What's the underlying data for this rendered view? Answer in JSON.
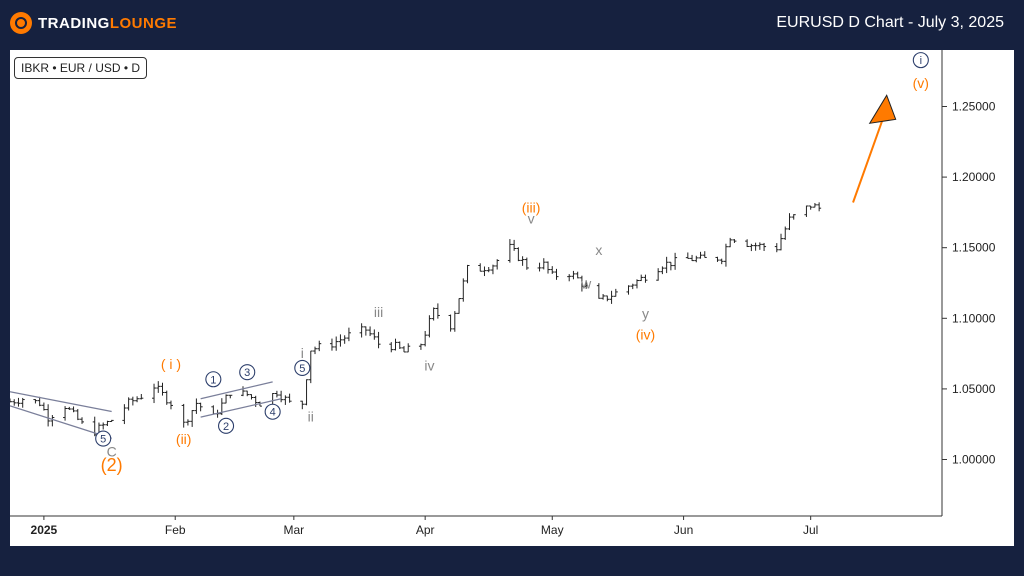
{
  "header": {
    "logo_text_main": "TRADING",
    "logo_text_accent": "LOUNGE",
    "title": "EURUSD D Chart - July 3, 2025"
  },
  "symbol": "IBKR • EUR / USD • D",
  "colors": {
    "background": "#16213f",
    "accent": "#ff7a00",
    "wave_gray": "#888888",
    "wave_blue": "#2c3e6b",
    "price_bar": "#222222"
  },
  "chart_data": {
    "type": "ohlc",
    "title": "EURUSD D Chart - July 3, 2025",
    "xlabel": "",
    "ylabel": "",
    "ylim": [
      0.96,
      1.29
    ],
    "y_ticks": [
      "1.00000",
      "1.05000",
      "1.10000",
      "1.15000",
      "1.20000",
      "1.25000"
    ],
    "x_ticks": [
      "2025",
      "Feb",
      "Mar",
      "Apr",
      "May",
      "Jun",
      "Jul"
    ],
    "x_range": [
      "2024-12-24",
      "2025-08-01"
    ],
    "grid": false,
    "series": [
      {
        "price_path": [
          [
            "2024-12-24",
            1.041
          ],
          [
            "2024-12-27",
            1.043
          ],
          [
            "2024-12-31",
            1.04
          ],
          [
            "2025-01-02",
            1.03
          ],
          [
            "2025-01-06",
            1.038
          ],
          [
            "2025-01-10",
            1.025
          ],
          [
            "2025-01-13",
            1.02
          ],
          [
            "2025-01-17",
            1.028
          ],
          [
            "2025-01-21",
            1.04
          ],
          [
            "2025-01-24",
            1.045
          ],
          [
            "2025-01-27",
            1.052
          ],
          [
            "2025-01-31",
            1.04
          ],
          [
            "2025-02-03",
            1.025
          ],
          [
            "2025-02-06",
            1.04
          ],
          [
            "2025-02-10",
            1.03
          ],
          [
            "2025-02-14",
            1.048
          ],
          [
            "2025-02-18",
            1.046
          ],
          [
            "2025-02-21",
            1.04
          ],
          [
            "2025-02-25",
            1.048
          ],
          [
            "2025-02-28",
            1.04
          ],
          [
            "2025-03-03",
            1.04
          ],
          [
            "2025-03-05",
            1.078
          ],
          [
            "2025-03-10",
            1.082
          ],
          [
            "2025-03-14",
            1.088
          ],
          [
            "2025-03-18",
            1.092
          ],
          [
            "2025-03-21",
            1.082
          ],
          [
            "2025-03-25",
            1.08
          ],
          [
            "2025-03-27",
            1.076
          ],
          [
            "2025-03-31",
            1.082
          ],
          [
            "2025-04-03",
            1.105
          ],
          [
            "2025-04-07",
            1.095
          ],
          [
            "2025-04-11",
            1.135
          ],
          [
            "2025-04-14",
            1.135
          ],
          [
            "2025-04-17",
            1.138
          ],
          [
            "2025-04-21",
            1.15
          ],
          [
            "2025-04-25",
            1.137
          ],
          [
            "2025-04-29",
            1.138
          ],
          [
            "2025-05-01",
            1.13
          ],
          [
            "2025-05-05",
            1.132
          ],
          [
            "2025-05-07",
            1.128
          ],
          [
            "2025-05-12",
            1.112
          ],
          [
            "2025-05-16",
            1.118
          ],
          [
            "2025-05-22",
            1.128
          ],
          [
            "2025-05-27",
            1.138
          ],
          [
            "2025-06-02",
            1.142
          ],
          [
            "2025-06-06",
            1.142
          ],
          [
            "2025-06-10",
            1.143
          ],
          [
            "2025-06-12",
            1.158
          ],
          [
            "2025-06-17",
            1.152
          ],
          [
            "2025-06-23",
            1.15
          ],
          [
            "2025-06-26",
            1.17
          ],
          [
            "2025-07-01",
            1.18
          ],
          [
            "2025-07-03",
            1.178
          ]
        ]
      }
    ],
    "channels": [
      {
        "color": "#7a7f9a",
        "from": [
          "2024-12-24",
          1.038
        ],
        "to": [
          "2025-01-17",
          1.015
        ]
      },
      {
        "color": "#7a7f9a",
        "from": [
          "2024-12-24",
          1.048
        ],
        "to": [
          "2025-01-17",
          1.034
        ]
      },
      {
        "color": "#7a7f9a",
        "from": [
          "2025-02-07",
          1.043
        ],
        "to": [
          "2025-02-24",
          1.055
        ]
      },
      {
        "color": "#7a7f9a",
        "from": [
          "2025-02-07",
          1.03
        ],
        "to": [
          "2025-02-26",
          1.043
        ]
      }
    ],
    "projection": {
      "color": "#ff7a00",
      "from": [
        "2025-07-11",
        1.182
      ],
      "to": [
        "2025-07-18",
        1.248
      ]
    },
    "wave_labels": [
      {
        "text": "C",
        "date": "2025-01-17",
        "price": 1.002,
        "style": "gray"
      },
      {
        "text": "(2)",
        "date": "2025-01-17",
        "price": 0.992,
        "style": "orange-big"
      },
      {
        "text": "5",
        "date": "2025-01-15",
        "price": 1.012,
        "style": "blue-circle"
      },
      {
        "text": "( i )",
        "date": "2025-01-31",
        "price": 1.064,
        "style": "orange"
      },
      {
        "text": "(ii)",
        "date": "2025-02-03",
        "price": 1.011,
        "style": "orange"
      },
      {
        "text": "1",
        "date": "2025-02-10",
        "price": 1.054,
        "style": "blue-circle"
      },
      {
        "text": "2",
        "date": "2025-02-13",
        "price": 1.021,
        "style": "blue-circle"
      },
      {
        "text": "3",
        "date": "2025-02-18",
        "price": 1.059,
        "style": "blue-circle"
      },
      {
        "text": "4",
        "date": "2025-02-24",
        "price": 1.031,
        "style": "blue-circle"
      },
      {
        "text": "5",
        "date": "2025-03-03",
        "price": 1.062,
        "style": "blue-circle"
      },
      {
        "text": "i",
        "date": "2025-03-03",
        "price": 1.072,
        "style": "gray"
      },
      {
        "text": "ii",
        "date": "2025-03-05",
        "price": 1.027,
        "style": "gray"
      },
      {
        "text": "iii",
        "date": "2025-03-21",
        "price": 1.101,
        "style": "gray"
      },
      {
        "text": "iv",
        "date": "2025-04-02",
        "price": 1.063,
        "style": "gray"
      },
      {
        "text": "v",
        "date": "2025-04-26",
        "price": 1.167,
        "style": "gray"
      },
      {
        "text": "(iii)",
        "date": "2025-04-26",
        "price": 1.175,
        "style": "orange"
      },
      {
        "text": "x",
        "date": "2025-05-12",
        "price": 1.145,
        "style": "gray"
      },
      {
        "text": "w",
        "date": "2025-05-09",
        "price": 1.121,
        "style": "gray"
      },
      {
        "text": "y",
        "date": "2025-05-23",
        "price": 1.1,
        "style": "gray"
      },
      {
        "text": "(iv)",
        "date": "2025-05-23",
        "price": 1.085,
        "style": "orange"
      },
      {
        "text": "(v)",
        "date": "2025-07-27",
        "price": 1.263,
        "style": "orange"
      },
      {
        "text": "i",
        "date": "2025-07-27",
        "price": 1.28,
        "style": "blue-circle"
      }
    ]
  }
}
